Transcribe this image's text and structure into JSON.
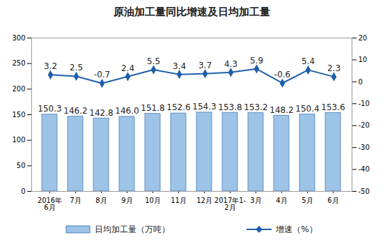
{
  "chart_data": {
    "type": "bar",
    "title": "原油加工量同比增速及日均加工量",
    "categories": [
      "2016年\n6月",
      "7月",
      "8月",
      "9月",
      "10月",
      "11月",
      "12月",
      "2017年1-\n2月",
      "3月",
      "4月",
      "5月",
      "6月"
    ],
    "series": [
      {
        "name": "日均加工量（万吨）",
        "type": "bar",
        "color": "#9dc3e6",
        "values": [
          150.3,
          146.2,
          142.8,
          146.0,
          151.8,
          152.6,
          154.3,
          153.8,
          153.2,
          148.2,
          150.4,
          153.6
        ],
        "value_labels": [
          "150.3",
          "146.2",
          "142.8",
          "146.0",
          "151.8",
          "152.6",
          "154.3",
          "153.8",
          "153.2",
          "148.2",
          "150.4",
          "153.6"
        ]
      },
      {
        "name": "增速（%）",
        "type": "line",
        "axis": "y2",
        "color": "#1f5fa8",
        "marker": "diamond",
        "line_style": "solid",
        "values": [
          3.2,
          2.5,
          -0.7,
          2.4,
          5.5,
          3.4,
          3.7,
          4.3,
          5.9,
          -0.6,
          5.4,
          2.3
        ]
      }
    ],
    "ylim": [
      0,
      300
    ],
    "yticks": [
      0,
      50,
      100,
      150,
      200,
      250,
      300
    ],
    "y2lim": [
      -50,
      20
    ],
    "y2ticks": [
      -50,
      -40,
      -30,
      -20,
      -10,
      0,
      10,
      20
    ],
    "data_labels": true,
    "legend": "bottom"
  }
}
